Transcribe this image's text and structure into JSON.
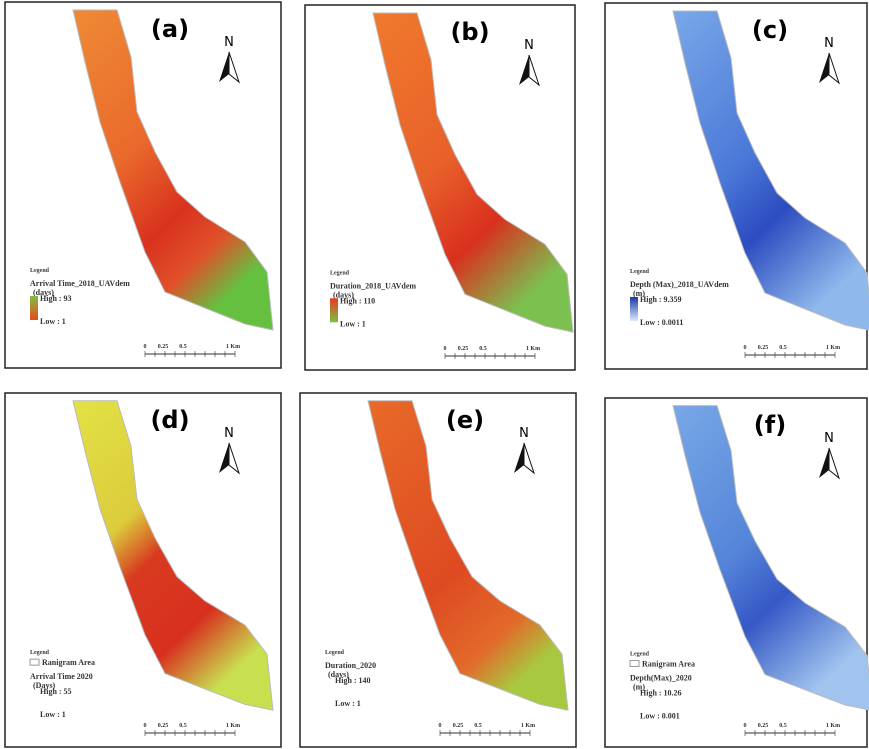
{
  "panels": [
    {
      "label": "(a)",
      "north": "N",
      "legend": {
        "title": "Legend",
        "layer": "Arrival Time_2018_UAVdem",
        "unit": "(days)",
        "high": "High : 93",
        "low": "Low : 1"
      },
      "scale": [
        "0",
        "0.25",
        "0.5",
        "1 Km"
      ]
    },
    {
      "label": "(b)",
      "north": "N",
      "legend": {
        "title": "Legend",
        "layer": "Duration_2018_UAVdem",
        "unit": "(days)",
        "high": "High : 110",
        "low": "Low : 1"
      },
      "scale": [
        "0",
        "0.25",
        "0.5",
        "1 Km"
      ]
    },
    {
      "label": "(c)",
      "north": "N",
      "legend": {
        "title": "Legend",
        "layer": "Depth (Max)_2018_UAVdem",
        "unit": "(m)",
        "high": "High : 9.359",
        "low": "Low : 0.0011"
      },
      "scale": [
        "0",
        "0.25",
        "0.5",
        "1 Km"
      ]
    },
    {
      "label": "(d)",
      "north": "N",
      "legend": {
        "title": "Legend",
        "area": "Ranigram Area",
        "layer": "Arrival Time 2020",
        "unit": "(Days)",
        "high": "High : 55",
        "low": "Low : 1"
      },
      "scale": [
        "0",
        "0.25",
        "0.5",
        "1 Km"
      ]
    },
    {
      "label": "(e)",
      "north": "N",
      "legend": {
        "title": "Legend",
        "layer": "Duration_2020",
        "unit": "(days)",
        "high": "High : 140",
        "low": "Low : 1"
      },
      "scale": [
        "0",
        "0.25",
        "0.5",
        "1 Km"
      ]
    },
    {
      "label": "(f)",
      "north": "N",
      "legend": {
        "title": "Legend",
        "area": "Ranigram Area",
        "layer": "Depth(Max)_2020",
        "unit": "(m)",
        "high": "High : 10.26",
        "low": "Low : 0.001"
      },
      "scale": [
        "0",
        "0.25",
        "0.5",
        "1 Km"
      ]
    }
  ]
}
